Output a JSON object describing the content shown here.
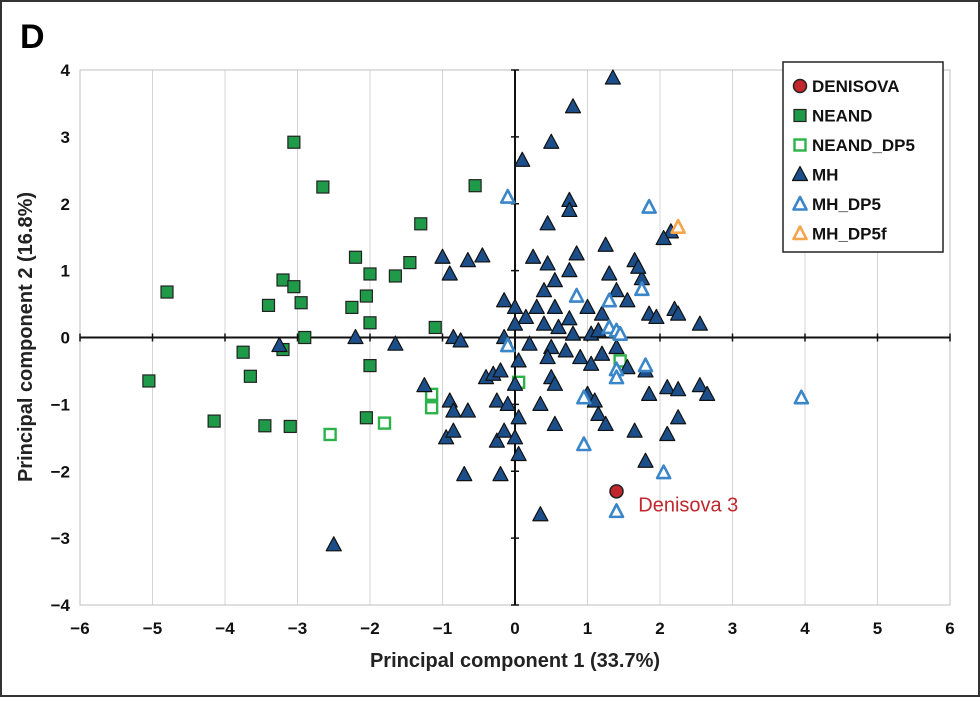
{
  "chart_data": {
    "type": "scatter",
    "panel_label": "D",
    "xlabel": "Principal component 1 (33.7%)",
    "ylabel": "Principal component 2 (16.8%)",
    "xlim": [
      -6,
      6
    ],
    "ylim": [
      -4,
      4
    ],
    "x_ticks": [
      -6,
      -5,
      -4,
      -3,
      -2,
      -1,
      0,
      1,
      2,
      3,
      4,
      5,
      6
    ],
    "y_ticks": [
      -4,
      -3,
      -2,
      -1,
      0,
      1,
      2,
      3,
      4
    ],
    "x_tick_labels": [
      "−6",
      "−5",
      "−4",
      "−3",
      "−2",
      "−1",
      "0",
      "1",
      "2",
      "3",
      "4",
      "5",
      "6"
    ],
    "y_tick_labels": [
      "−4",
      "−3",
      "−2",
      "−1",
      "0",
      "1",
      "2",
      "3",
      "4"
    ],
    "grid": "vertical",
    "legend_position": "top-right",
    "annotation": {
      "text": "Denisova 3",
      "x": 1.7,
      "y": -2.5
    },
    "series": [
      {
        "name": "DENISOVA",
        "marker": "circle",
        "fill": "#c1272d",
        "stroke": "#222222",
        "points": [
          [
            1.4,
            -2.3
          ]
        ]
      },
      {
        "name": "NEAND",
        "marker": "square",
        "fill": "#1f9a48",
        "stroke": "#222222",
        "points": [
          [
            -3.05,
            2.92
          ],
          [
            -2.65,
            2.25
          ],
          [
            -0.55,
            2.27
          ],
          [
            -1.3,
            1.7
          ],
          [
            -2.2,
            1.2
          ],
          [
            -1.45,
            1.12
          ],
          [
            -2.0,
            0.95
          ],
          [
            -1.65,
            0.92
          ],
          [
            -3.2,
            0.86
          ],
          [
            -3.05,
            0.76
          ],
          [
            -4.8,
            0.68
          ],
          [
            -2.95,
            0.52
          ],
          [
            -3.4,
            0.48
          ],
          [
            -2.25,
            0.45
          ],
          [
            -2.05,
            0.62
          ],
          [
            -2.0,
            0.22
          ],
          [
            -1.1,
            0.15
          ],
          [
            -2.9,
            0.0
          ],
          [
            -3.2,
            -0.18
          ],
          [
            -3.75,
            -0.22
          ],
          [
            -2.0,
            -0.42
          ],
          [
            -3.65,
            -0.58
          ],
          [
            -5.05,
            -0.65
          ],
          [
            -4.15,
            -1.25
          ],
          [
            -3.45,
            -1.32
          ],
          [
            -3.1,
            -1.33
          ],
          [
            -2.05,
            -1.2
          ]
        ]
      },
      {
        "name": "NEAND_DP5",
        "marker": "square-open",
        "fill": "#ffffff",
        "stroke": "#2bb34a",
        "points": [
          [
            -2.55,
            -1.45
          ],
          [
            -1.8,
            -1.28
          ],
          [
            -1.15,
            -1.05
          ],
          [
            -1.15,
            -0.85
          ],
          [
            0.05,
            -0.67
          ],
          [
            1.45,
            -0.35
          ]
        ]
      },
      {
        "name": "MH",
        "marker": "triangle",
        "fill": "#1c4f8a",
        "stroke": "#111111",
        "points": [
          [
            1.35,
            3.88
          ],
          [
            0.8,
            3.45
          ],
          [
            0.5,
            2.92
          ],
          [
            0.1,
            2.65
          ],
          [
            0.75,
            2.05
          ],
          [
            0.75,
            1.9
          ],
          [
            0.45,
            1.7
          ],
          [
            2.15,
            1.58
          ],
          [
            2.05,
            1.48
          ],
          [
            1.25,
            1.38
          ],
          [
            0.85,
            1.25
          ],
          [
            0.25,
            1.2
          ],
          [
            -0.45,
            1.22
          ],
          [
            -0.65,
            1.15
          ],
          [
            -1.0,
            1.2
          ],
          [
            1.65,
            1.15
          ],
          [
            0.45,
            1.1
          ],
          [
            0.75,
            1.0
          ],
          [
            0.55,
            0.85
          ],
          [
            1.3,
            0.95
          ],
          [
            1.75,
            0.88
          ],
          [
            1.7,
            1.05
          ],
          [
            0.4,
            0.7
          ],
          [
            1.4,
            0.7
          ],
          [
            -0.9,
            0.95
          ],
          [
            -0.15,
            0.55
          ],
          [
            0.0,
            0.45
          ],
          [
            0.3,
            0.45
          ],
          [
            0.55,
            0.45
          ],
          [
            0.15,
            0.3
          ],
          [
            0.75,
            0.28
          ],
          [
            1.0,
            0.45
          ],
          [
            1.2,
            0.35
          ],
          [
            1.55,
            0.55
          ],
          [
            1.85,
            0.35
          ],
          [
            2.2,
            0.42
          ],
          [
            2.25,
            0.35
          ],
          [
            2.55,
            0.2
          ],
          [
            1.95,
            0.3
          ],
          [
            0.0,
            0.2
          ],
          [
            0.4,
            0.2
          ],
          [
            0.6,
            0.15
          ],
          [
            0.8,
            0.05
          ],
          [
            1.05,
            0.05
          ],
          [
            1.15,
            0.1
          ],
          [
            -0.85,
            -0.0
          ],
          [
            -0.75,
            -0.05
          ],
          [
            -1.65,
            -0.1
          ],
          [
            -3.25,
            -0.12
          ],
          [
            -2.2,
            0.0
          ],
          [
            -0.15,
            0.0
          ],
          [
            0.2,
            -0.1
          ],
          [
            0.5,
            -0.15
          ],
          [
            0.7,
            -0.2
          ],
          [
            1.2,
            -0.25
          ],
          [
            1.4,
            -0.15
          ],
          [
            0.05,
            -0.35
          ],
          [
            0.45,
            -0.3
          ],
          [
            0.9,
            -0.3
          ],
          [
            1.05,
            -0.4
          ],
          [
            1.55,
            -0.45
          ],
          [
            1.8,
            -0.5
          ],
          [
            2.1,
            -0.75
          ],
          [
            2.25,
            -0.78
          ],
          [
            2.55,
            -0.72
          ],
          [
            2.65,
            -0.85
          ],
          [
            1.85,
            -0.85
          ],
          [
            -0.4,
            -0.6
          ],
          [
            -0.3,
            -0.55
          ],
          [
            -0.2,
            -0.5
          ],
          [
            0.0,
            -0.7
          ],
          [
            0.5,
            -0.6
          ],
          [
            0.55,
            -0.7
          ],
          [
            -1.25,
            -0.72
          ],
          [
            -0.9,
            -0.95
          ],
          [
            -0.85,
            -1.1
          ],
          [
            -0.65,
            -1.1
          ],
          [
            -0.25,
            -0.95
          ],
          [
            -0.1,
            -1.0
          ],
          [
            1.0,
            -0.85
          ],
          [
            1.1,
            -0.95
          ],
          [
            0.35,
            -1.0
          ],
          [
            0.05,
            -1.2
          ],
          [
            0.55,
            -1.3
          ],
          [
            1.15,
            -1.15
          ],
          [
            1.25,
            -1.3
          ],
          [
            2.25,
            -1.2
          ],
          [
            -0.95,
            -1.5
          ],
          [
            -0.85,
            -1.4
          ],
          [
            -0.25,
            -1.55
          ],
          [
            -0.15,
            -1.4
          ],
          [
            0.0,
            -1.5
          ],
          [
            0.05,
            -1.75
          ],
          [
            1.65,
            -1.4
          ],
          [
            2.1,
            -1.45
          ],
          [
            -0.7,
            -2.05
          ],
          [
            -0.2,
            -2.05
          ],
          [
            1.8,
            -1.85
          ],
          [
            0.35,
            -2.65
          ],
          [
            -2.5,
            -3.1
          ]
        ]
      },
      {
        "name": "MH_DP5",
        "marker": "triangle-open",
        "fill": "#ffffff",
        "stroke": "#3a86c8",
        "points": [
          [
            -0.1,
            2.1
          ],
          [
            1.85,
            1.95
          ],
          [
            0.85,
            0.62
          ],
          [
            1.3,
            0.55
          ],
          [
            1.75,
            0.72
          ],
          [
            1.3,
            0.15
          ],
          [
            1.4,
            0.1
          ],
          [
            1.45,
            0.05
          ],
          [
            -0.1,
            -0.12
          ],
          [
            1.4,
            -0.48
          ],
          [
            1.8,
            -0.42
          ],
          [
            0.95,
            -0.9
          ],
          [
            1.4,
            -0.6
          ],
          [
            0.95,
            -1.6
          ],
          [
            3.95,
            -0.9
          ],
          [
            2.05,
            -2.02
          ],
          [
            1.4,
            -2.6
          ]
        ]
      },
      {
        "name": "MH_DP5f",
        "marker": "triangle-open",
        "fill": "#ffffff",
        "stroke": "#f5a54a",
        "points": [
          [
            2.25,
            1.65
          ]
        ]
      }
    ]
  }
}
